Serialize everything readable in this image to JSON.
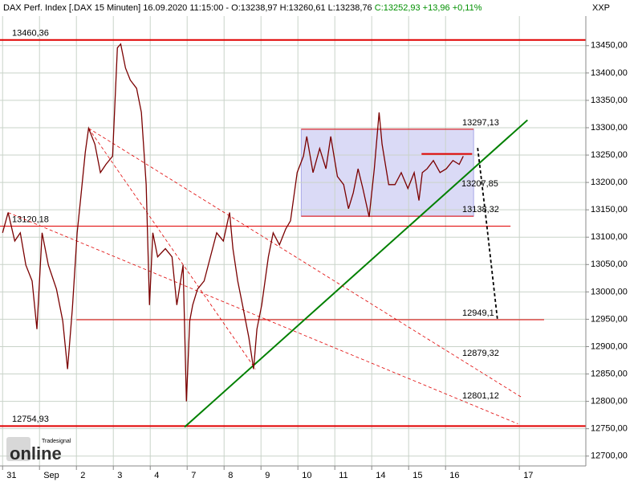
{
  "chart_data": {
    "type": "line",
    "title": "DAX Perf. Index [.DAX  15 Minuten] 16.09.2020 11:15:00 - O:13238,97 H:13260,61 L:13238,76",
    "close_text": "C:13252,93 +13,96 +0,11%",
    "symbol_label": "XXP",
    "logo": "online",
    "logo_small": "Tradesignal",
    "color": "#7a0000",
    "x": [
      0,
      0.15,
      0.33,
      0.48,
      0.63,
      0.8,
      0.93,
      1.07,
      1.24,
      1.46,
      1.63,
      1.76,
      1.89,
      2.02,
      2.11,
      2.24,
      2.33,
      2.5,
      2.65,
      2.8,
      2.98,
      3.11,
      3.2,
      3.33,
      3.46,
      3.63,
      3.76,
      3.89,
      3.98,
      4.07,
      4.2,
      4.41,
      4.59,
      4.72,
      4.89,
      4.98,
      5.07,
      5.15,
      5.28,
      5.46,
      5.63,
      5.8,
      5.98,
      6.15,
      6.24,
      6.37,
      6.5,
      6.67,
      6.8,
      6.89,
      7.02,
      7.2,
      7.33,
      7.5,
      7.67,
      7.8,
      7.98,
      8.15,
      8.24,
      8.41,
      8.59,
      8.76,
      8.89,
      9.07,
      9.24,
      9.37,
      9.5,
      9.63,
      9.76,
      9.93,
      10.07,
      10.2,
      10.28,
      10.46,
      10.63,
      10.8,
      10.98,
      11.15,
      11.28,
      11.37,
      11.5,
      11.67,
      11.85,
      12.02,
      12.2,
      12.37,
      12.48
    ],
    "values": [
      13108,
      13145,
      13093,
      13108,
      13049,
      13020,
      12932,
      13108,
      13049,
      13005,
      12947,
      12859,
      12969,
      13108,
      13167,
      13255,
      13299,
      13270,
      13218,
      13233,
      13248,
      13446,
      13453,
      13409,
      13387,
      13372,
      13328,
      13196,
      12976,
      13108,
      13064,
      13079,
      13064,
      12976,
      13049,
      12800,
      12947,
      12976,
      13005,
      13020,
      13064,
      13108,
      13093,
      13145,
      13079,
      13020,
      12976,
      12917,
      12859,
      12932,
      12976,
      13064,
      13108,
      13086,
      13115,
      13130,
      13218,
      13248,
      13284,
      13218,
      13262,
      13225,
      13284,
      13211,
      13196,
      13152,
      13181,
      13225,
      13189,
      13137,
      13225,
      13328,
      13270,
      13196,
      13196,
      13218,
      13189,
      13218,
      13167,
      13218,
      13225,
      13240,
      13218,
      13225,
      13240,
      13233,
      13248
    ],
    "xlim": [
      -0.07,
      15.8
    ],
    "ylim": [
      12682,
      13504
    ],
    "xticks": [
      {
        "value": 0,
        "label": "31"
      },
      {
        "value": 1,
        "label": "Sep"
      },
      {
        "value": 2,
        "label": "2"
      },
      {
        "value": 3,
        "label": "3"
      },
      {
        "value": 4,
        "label": "4"
      },
      {
        "value": 5,
        "label": "7"
      },
      {
        "value": 6,
        "label": "8"
      },
      {
        "value": 7,
        "label": "9"
      },
      {
        "value": 8,
        "label": "10"
      },
      {
        "value": 9,
        "label": "11"
      },
      {
        "value": 10,
        "label": "14"
      },
      {
        "value": 11,
        "label": "15"
      },
      {
        "value": 12,
        "label": "16"
      },
      {
        "value": 14,
        "label": "17"
      }
    ],
    "yticks": [
      {
        "value": 12700,
        "label": "12700,00"
      },
      {
        "value": 12750,
        "label": "12750,00"
      },
      {
        "value": 12800,
        "label": "12800,00"
      },
      {
        "value": 12850,
        "label": "12850,00"
      },
      {
        "value": 12900,
        "label": "12900,00"
      },
      {
        "value": 12950,
        "label": "12950,00"
      },
      {
        "value": 13000,
        "label": "13000,00"
      },
      {
        "value": 13050,
        "label": "13050,00"
      },
      {
        "value": 13100,
        "label": "13100,00"
      },
      {
        "value": 13150,
        "label": "13150,00"
      },
      {
        "value": 13200,
        "label": "13200,00"
      },
      {
        "value": 13250,
        "label": "13250,00"
      },
      {
        "value": 13300,
        "label": "13300,00"
      },
      {
        "value": 13350,
        "label": "13350,00"
      },
      {
        "value": 13400,
        "label": "13400,00"
      },
      {
        "value": 13450,
        "label": "13450,00"
      }
    ],
    "grid": true,
    "box": {
      "x": [
        8.09,
        12.76
      ],
      "values": [
        13297.13,
        13138.32
      ],
      "color": "#dadaf6"
    },
    "levels": [
      {
        "value": 13460.36,
        "label": "13460,36",
        "x": [
          -0.07,
          15.8
        ],
        "thick": true
      },
      {
        "value": 13297.13,
        "label": "13297,13",
        "x": [
          8.09,
          12.76
        ],
        "thick": false
      },
      {
        "value": 13138.32,
        "label": "13138,32",
        "x": [
          8.09,
          12.76
        ],
        "thick": false
      },
      {
        "value": 13120.18,
        "label": "13120,18",
        "x": [
          -0.07,
          13.76
        ],
        "thick": false
      },
      {
        "value": 12949.1,
        "label": "12949,1",
        "x": [
          2.0,
          14.67
        ],
        "thick": false
      },
      {
        "value": 12754.93,
        "label": "12754,93",
        "x": [
          -0.07,
          15.8
        ],
        "thick": true
      }
    ],
    "level_color": "#e00000",
    "trendlines": [
      {
        "color": "#008000",
        "dashed": false,
        "points": [
          [
            4.93,
            12753
          ],
          [
            14.22,
            13314
          ]
        ]
      },
      {
        "color": "#e00000",
        "dashed": true,
        "points": [
          [
            2.33,
            13299
          ],
          [
            6.85,
            12859
          ]
        ]
      },
      {
        "color": "#e00000",
        "dashed": true,
        "points": [
          [
            2.33,
            13299
          ],
          [
            14.07,
            12807
          ]
        ]
      },
      {
        "color": "#e00000",
        "dashed": true,
        "points": [
          [
            0.15,
            13145
          ],
          [
            13.96,
            12759
          ]
        ]
      },
      {
        "color": "#e00000",
        "dashed": false,
        "points": [
          [
            11.35,
            13252
          ],
          [
            12.72,
            13252
          ]
        ]
      },
      {
        "color": "#000000",
        "dashed": true,
        "points": [
          [
            12.87,
            13263
          ],
          [
            13.09,
            13138
          ],
          [
            13.41,
            12947
          ]
        ]
      }
    ],
    "annotations": [
      {
        "text": "13207,85",
        "color": "#008000"
      },
      {
        "text": "12879,32",
        "color": "#e00000"
      },
      {
        "text": "12801,12",
        "color": "#e00000"
      }
    ]
  }
}
